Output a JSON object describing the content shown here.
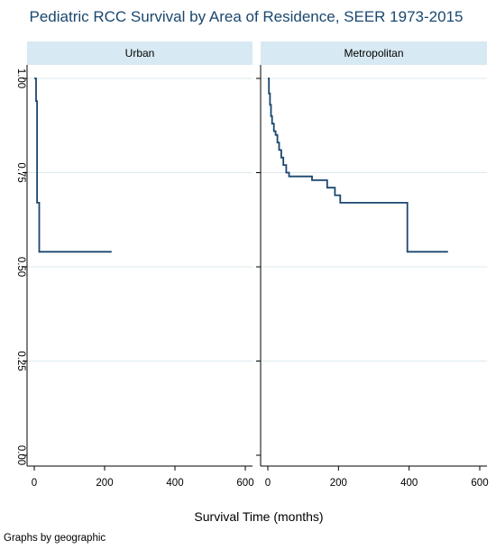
{
  "chart_data": {
    "type": "line",
    "chart_kind": "kaplan-meier step survival curves, faceted",
    "title": "Pediatric RCC Survival by Area of Residence, SEER 1973-2015",
    "xlabel": "Survival Time (months)",
    "ylabel": "",
    "note": "Graphs by geographic",
    "xlim": [
      0,
      600
    ],
    "ylim": [
      0,
      1
    ],
    "x_ticks": [
      0,
      200,
      400,
      600
    ],
    "x_tick_labels": [
      "0",
      "200",
      "400",
      "600"
    ],
    "y_ticks": [
      0,
      0.25,
      0.5,
      0.75,
      1
    ],
    "y_tick_labels": [
      "0.00",
      "0.25",
      "0.50",
      "0.75",
      "1.00"
    ],
    "y_tick_label_orientation": "rotated-vertical",
    "grid": true,
    "line_color": "#1a476f",
    "panel_header_color": "#d7e9f2",
    "title_color": "#1a476f",
    "panels": [
      {
        "label": "Urban",
        "points": [
          {
            "x": 0,
            "y": 1.0
          },
          {
            "x": 5,
            "y": 1.0
          },
          {
            "x": 5,
            "y": 0.94
          },
          {
            "x": 8,
            "y": 0.94
          },
          {
            "x": 8,
            "y": 0.67
          },
          {
            "x": 14,
            "y": 0.67
          },
          {
            "x": 14,
            "y": 0.54
          },
          {
            "x": 220,
            "y": 0.54
          }
        ]
      },
      {
        "label": "Metropolitan",
        "points": [
          {
            "x": 0,
            "y": 1.0
          },
          {
            "x": 3,
            "y": 1.0
          },
          {
            "x": 3,
            "y": 0.96
          },
          {
            "x": 6,
            "y": 0.96
          },
          {
            "x": 6,
            "y": 0.93
          },
          {
            "x": 9,
            "y": 0.93
          },
          {
            "x": 9,
            "y": 0.9
          },
          {
            "x": 12,
            "y": 0.9
          },
          {
            "x": 12,
            "y": 0.88
          },
          {
            "x": 17,
            "y": 0.88
          },
          {
            "x": 17,
            "y": 0.86
          },
          {
            "x": 22,
            "y": 0.86
          },
          {
            "x": 22,
            "y": 0.85
          },
          {
            "x": 27,
            "y": 0.85
          },
          {
            "x": 27,
            "y": 0.83
          },
          {
            "x": 32,
            "y": 0.83
          },
          {
            "x": 32,
            "y": 0.81
          },
          {
            "x": 38,
            "y": 0.81
          },
          {
            "x": 38,
            "y": 0.79
          },
          {
            "x": 44,
            "y": 0.79
          },
          {
            "x": 44,
            "y": 0.77
          },
          {
            "x": 52,
            "y": 0.77
          },
          {
            "x": 52,
            "y": 0.75
          },
          {
            "x": 60,
            "y": 0.75
          },
          {
            "x": 60,
            "y": 0.74
          },
          {
            "x": 125,
            "y": 0.74
          },
          {
            "x": 125,
            "y": 0.73
          },
          {
            "x": 168,
            "y": 0.73
          },
          {
            "x": 168,
            "y": 0.71
          },
          {
            "x": 190,
            "y": 0.71
          },
          {
            "x": 190,
            "y": 0.69
          },
          {
            "x": 205,
            "y": 0.69
          },
          {
            "x": 205,
            "y": 0.67
          },
          {
            "x": 395,
            "y": 0.67
          },
          {
            "x": 395,
            "y": 0.54
          },
          {
            "x": 510,
            "y": 0.54
          }
        ]
      }
    ]
  }
}
